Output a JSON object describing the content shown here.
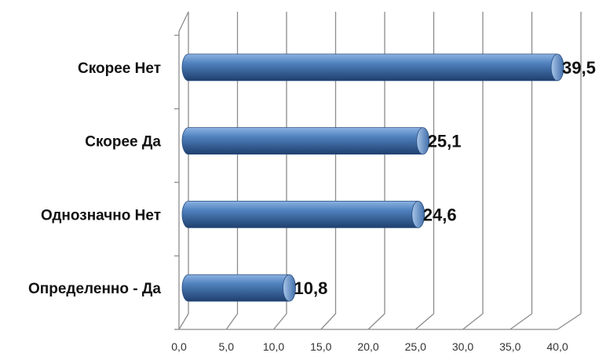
{
  "chart_data": {
    "type": "bar",
    "orientation": "horizontal",
    "style": "3d-cylinder",
    "categories": [
      "Определенно - Да",
      "Однозначно Нет",
      "Скорее Да",
      "Скорее Нет"
    ],
    "values": [
      10.8,
      24.6,
      25.1,
      39.5
    ],
    "value_labels": [
      "10,8",
      "24,6",
      "25,1",
      "39,5"
    ],
    "xlim": [
      0,
      40
    ],
    "xticks": [
      0,
      5,
      10,
      15,
      20,
      25,
      30,
      35,
      40
    ],
    "xtick_labels": [
      "0,0",
      "5,0",
      "10,0",
      "15,0",
      "20,0",
      "25,0",
      "30,0",
      "35,0",
      "40,0"
    ],
    "grid": true,
    "legend": "none",
    "colors": {
      "bar_light": "#8db3e2",
      "bar_mid": "#4f81bd",
      "bar_dark": "#1f3f6e",
      "grid": "#8c8c8c",
      "text": "#111111"
    }
  }
}
